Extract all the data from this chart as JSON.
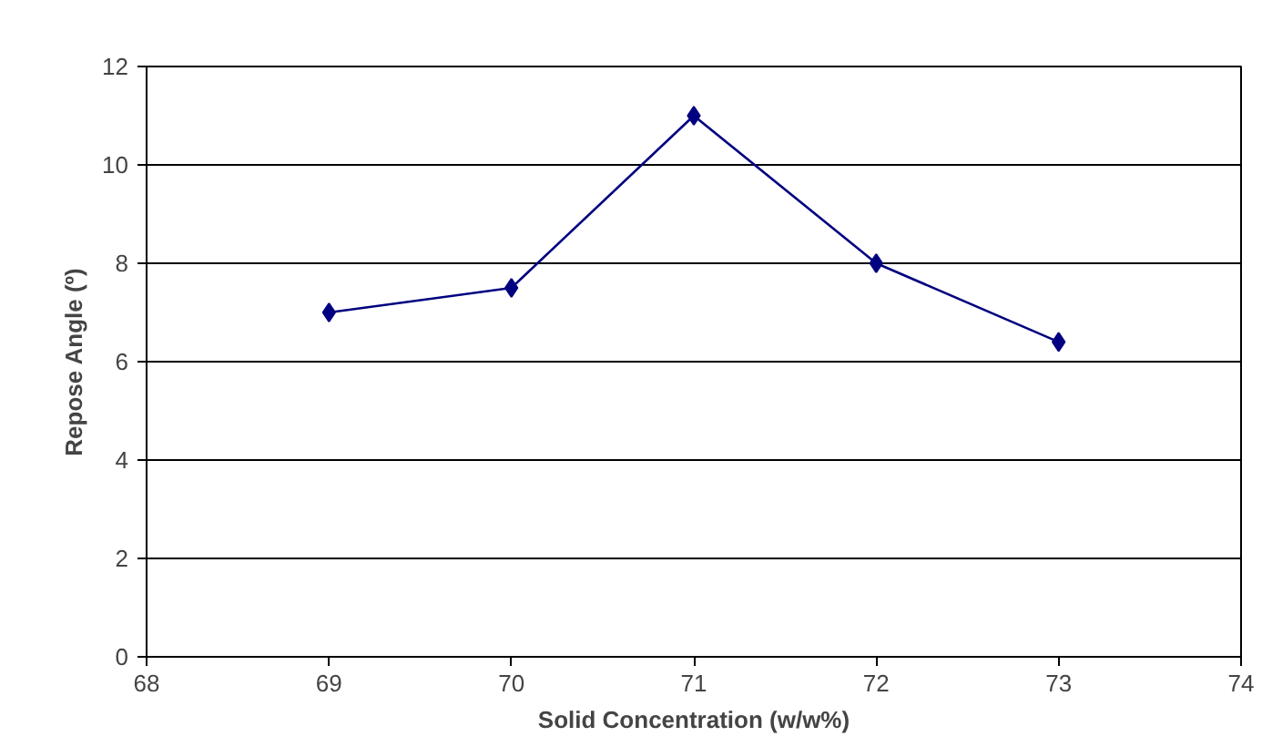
{
  "chart_data": {
    "type": "line",
    "xlabel": "Solid Concentration (w/w%)",
    "ylabel": "Repose Angle (º)",
    "x": [
      69,
      70,
      71,
      72,
      73
    ],
    "series": [
      {
        "color": "#000080",
        "values": [
          7,
          7.5,
          11,
          8,
          6.4
        ]
      }
    ],
    "xlim": [
      68,
      74
    ],
    "xticks": [
      68,
      69,
      70,
      71,
      72,
      73,
      74
    ],
    "ylim": [
      0,
      12
    ],
    "yticks": [
      0,
      2,
      4,
      6,
      8,
      10,
      12
    ],
    "grid": "y",
    "marker": "diamond",
    "line_style": "solid"
  }
}
